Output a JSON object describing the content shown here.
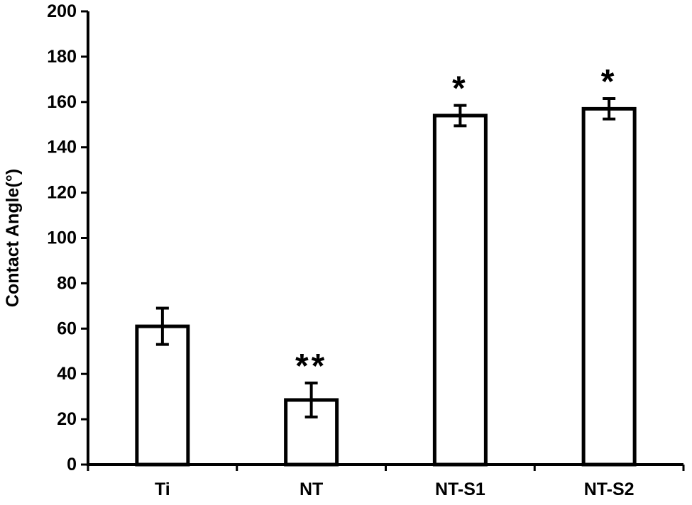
{
  "chart_data": {
    "type": "bar",
    "title": "",
    "xlabel": "",
    "ylabel": "Contact Angle(°)",
    "ylim": [
      0,
      200
    ],
    "yticks": [
      0,
      20,
      40,
      60,
      80,
      100,
      120,
      140,
      160,
      180,
      200
    ],
    "categories": [
      "Ti",
      "NT",
      "NT-S1",
      "NT-S2"
    ],
    "values": [
      61,
      28.5,
      154,
      157
    ],
    "errors": [
      8,
      7.5,
      4.5,
      4.5
    ],
    "annotations": [
      "",
      "**",
      "*",
      "*"
    ],
    "grid": false,
    "legend": "none",
    "colors": {
      "bar_fill": "#ffffff",
      "bar_stroke": "#000000",
      "axis": "#000000"
    }
  }
}
